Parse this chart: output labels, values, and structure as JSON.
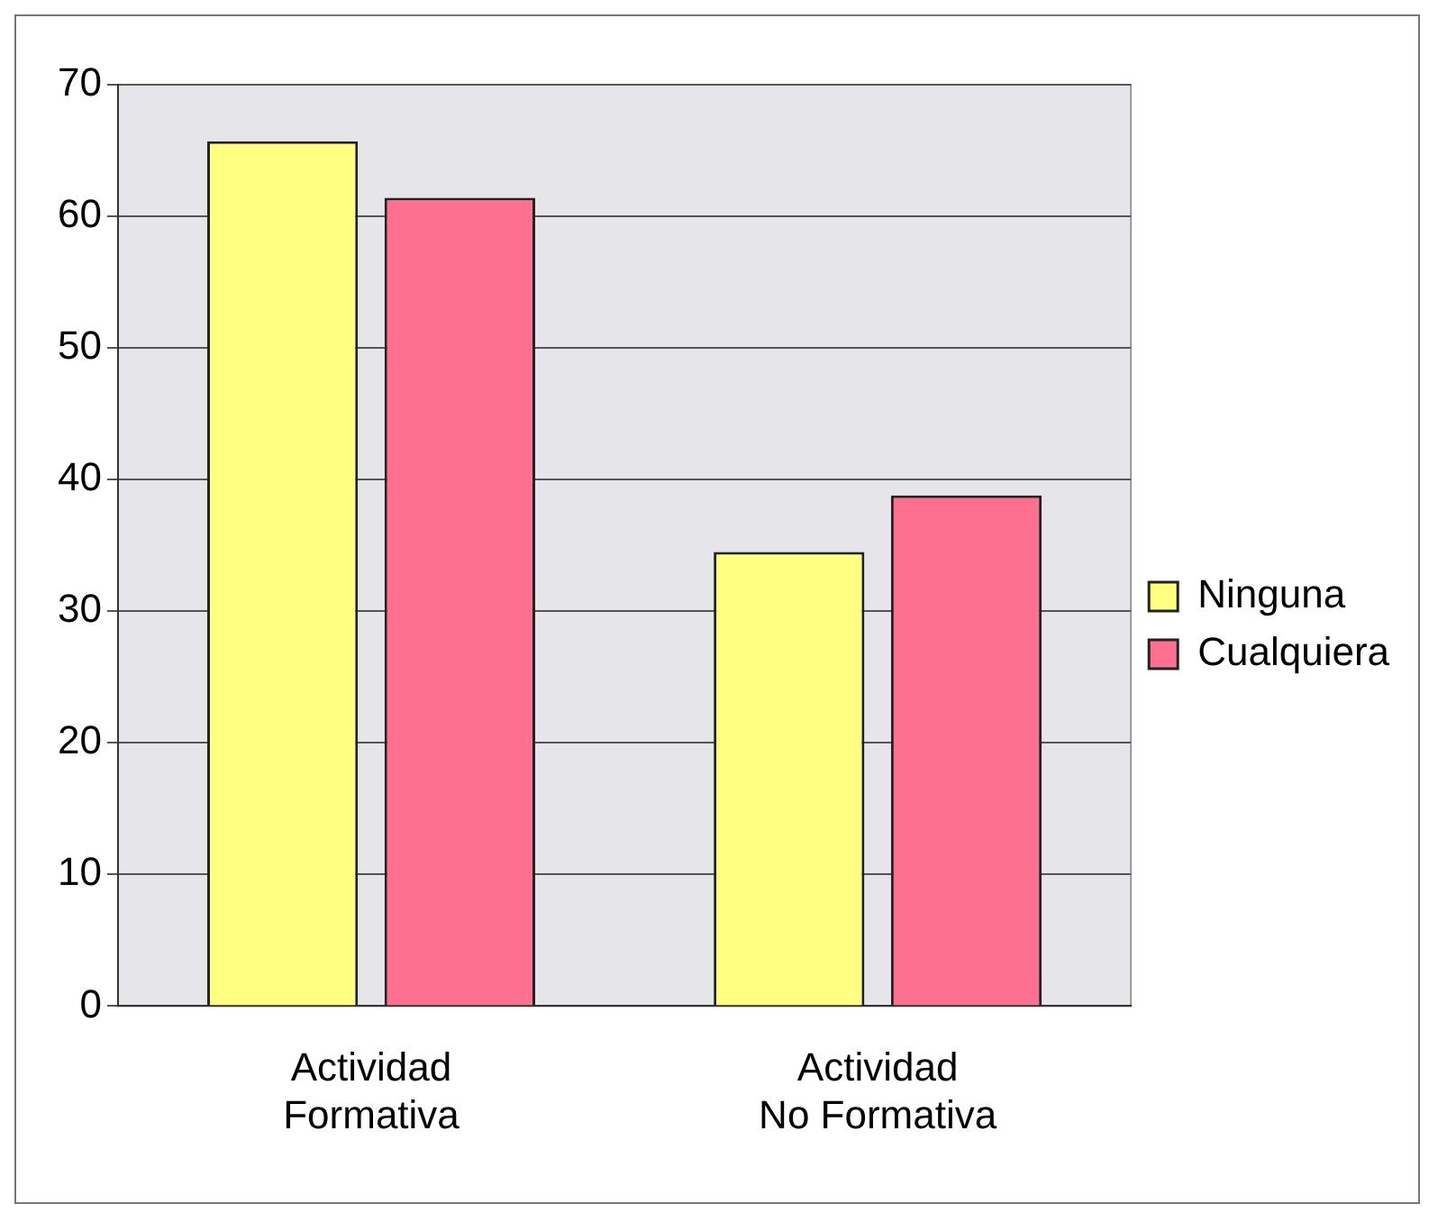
{
  "chart_data": {
    "type": "bar",
    "categories": [
      "Actividad Formativa",
      "Actividad No Formativa"
    ],
    "series": [
      {
        "name": "Ninguna",
        "color": "#ffff80",
        "values": [
          65.7,
          34.5
        ]
      },
      {
        "name": "Cualquiera",
        "color": "#ff7090",
        "values": [
          61.4,
          38.8
        ]
      }
    ],
    "ylim": [
      0,
      70
    ],
    "yticks": [
      0,
      10,
      20,
      30,
      40,
      50,
      60,
      70
    ],
    "grid": "y",
    "legend": "right"
  }
}
